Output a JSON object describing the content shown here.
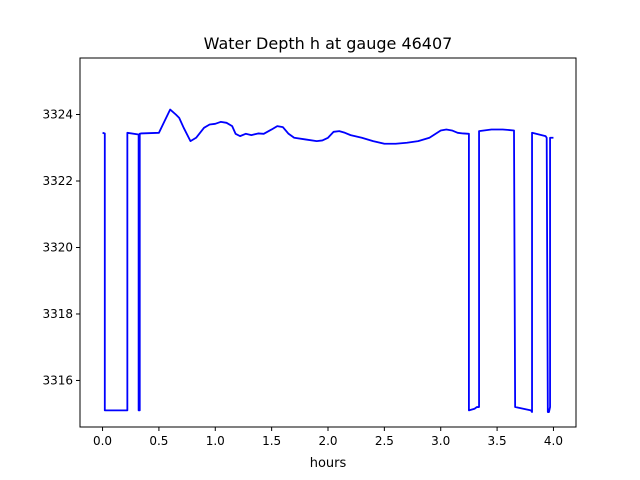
{
  "chart_data": {
    "type": "line",
    "title": "Water Depth h at gauge 46407",
    "xlabel": "hours",
    "ylabel": "",
    "xlim": [
      -0.2,
      4.2
    ],
    "ylim": [
      3314.6,
      3325.7
    ],
    "xticks": [
      0.0,
      0.5,
      1.0,
      1.5,
      2.0,
      2.5,
      3.0,
      3.5,
      4.0
    ],
    "xtick_labels": [
      "0.0",
      "0.5",
      "1.0",
      "1.5",
      "2.0",
      "2.5",
      "3.0",
      "3.5",
      "4.0"
    ],
    "yticks": [
      3316,
      3318,
      3320,
      3322,
      3324
    ],
    "ytick_labels": [
      "3316",
      "3318",
      "3320",
      "3322",
      "3324"
    ],
    "grid": false,
    "line_color": "#0000ff",
    "series": [
      {
        "x": [
          0.0,
          0.02,
          0.02,
          0.22,
          0.22,
          0.32,
          0.32,
          0.33,
          0.33,
          0.34,
          0.34,
          0.5,
          0.55,
          0.6,
          0.65,
          0.68,
          0.72,
          0.78,
          0.83,
          0.9,
          0.95,
          1.0,
          1.05,
          1.1,
          1.15,
          1.18,
          1.22,
          1.27,
          1.32,
          1.38,
          1.43,
          1.5,
          1.55,
          1.6,
          1.65,
          1.7,
          1.8,
          1.9,
          1.95,
          2.0,
          2.05,
          2.1,
          2.15,
          2.2,
          2.3,
          2.4,
          2.5,
          2.6,
          2.7,
          2.8,
          2.9,
          3.0,
          3.05,
          3.1,
          3.15,
          3.2,
          3.25,
          3.25,
          3.3,
          3.32,
          3.34,
          3.34,
          3.45,
          3.55,
          3.65,
          3.66,
          3.66,
          3.8,
          3.81,
          3.81,
          3.93,
          3.94,
          3.95,
          3.96,
          3.97,
          3.97,
          4.0
        ],
        "y": [
          3323.45,
          3323.43,
          3315.1,
          3315.1,
          3323.45,
          3323.4,
          3315.1,
          3315.1,
          3323.42,
          3323.43,
          3323.43,
          3323.45,
          3323.8,
          3324.15,
          3324.0,
          3323.9,
          3323.6,
          3323.2,
          3323.3,
          3323.6,
          3323.7,
          3323.72,
          3323.78,
          3323.75,
          3323.65,
          3323.42,
          3323.35,
          3323.42,
          3323.38,
          3323.43,
          3323.42,
          3323.55,
          3323.65,
          3323.62,
          3323.42,
          3323.3,
          3323.25,
          3323.2,
          3323.22,
          3323.3,
          3323.48,
          3323.5,
          3323.45,
          3323.38,
          3323.3,
          3323.2,
          3323.12,
          3323.12,
          3323.15,
          3323.2,
          3323.3,
          3323.52,
          3323.55,
          3323.52,
          3323.45,
          3323.43,
          3323.42,
          3315.1,
          3315.15,
          3315.2,
          3315.2,
          3323.5,
          3323.55,
          3323.55,
          3323.52,
          3315.2,
          3315.2,
          3315.1,
          3315.05,
          3323.45,
          3323.35,
          3323.3,
          3315.05,
          3315.05,
          3315.2,
          3323.3,
          3323.3
        ]
      }
    ]
  }
}
